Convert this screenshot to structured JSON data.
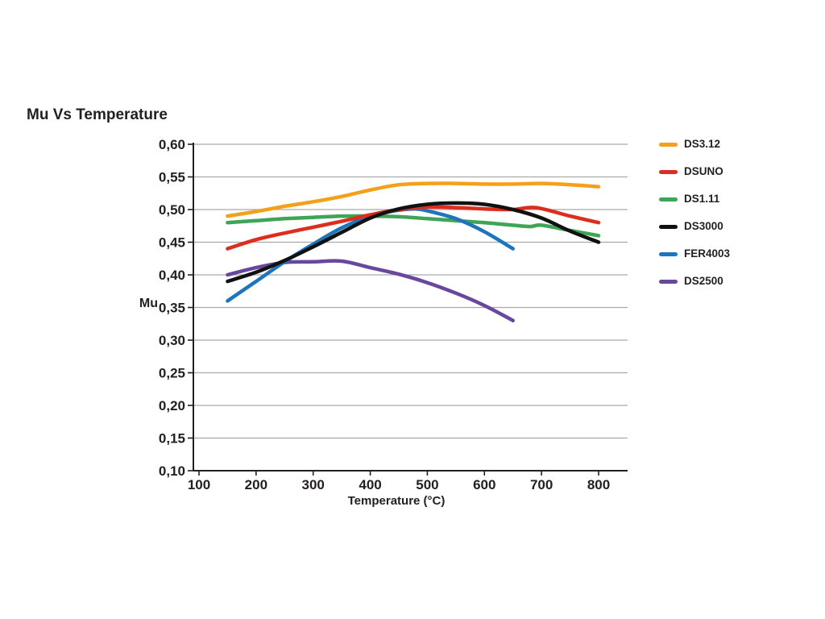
{
  "title": "Mu Vs Temperature",
  "chart_data": {
    "type": "line",
    "title": "Mu Vs Temperature",
    "xlabel": "Temperature (°C)",
    "ylabel": "Mu",
    "xlim": [
      100,
      800
    ],
    "ylim": [
      0.1,
      0.6
    ],
    "grid": "horizontal",
    "legend_position": "right",
    "background_color": "#ffffff",
    "gridline_color": "#A7A9AC",
    "axis_color": "#231F20",
    "text_color": "#231F20",
    "xticks": {
      "values": [
        100,
        200,
        300,
        400,
        500,
        600,
        700,
        800
      ],
      "labels": [
        "100",
        "200",
        "300",
        "400",
        "500",
        "600",
        "700",
        "800"
      ]
    },
    "yticks": {
      "values": [
        0.6,
        0.55,
        0.5,
        0.45,
        0.4,
        0.35,
        0.3,
        0.25,
        0.2,
        0.15,
        0.1
      ],
      "labels": [
        "0,60",
        "0,55",
        "0,50",
        "0,45",
        "0,40",
        "0,35",
        "0,30",
        "0,25",
        "0,20",
        "0,15",
        "0,10"
      ]
    },
    "series": [
      {
        "name": "DS3.12",
        "color": "#F5A01B",
        "x": [
          150,
          200,
          250,
          300,
          350,
          400,
          450,
          500,
          550,
          600,
          650,
          700,
          750,
          800
        ],
        "y": [
          0.49,
          0.497,
          0.505,
          0.512,
          0.52,
          0.53,
          0.538,
          0.54,
          0.54,
          0.539,
          0.539,
          0.54,
          0.538,
          0.535
        ]
      },
      {
        "name": "DSUNO",
        "color": "#DC2E1E",
        "x": [
          150,
          200,
          250,
          300,
          350,
          400,
          450,
          500,
          550,
          600,
          650,
          690,
          750,
          800
        ],
        "y": [
          0.44,
          0.454,
          0.464,
          0.473,
          0.482,
          0.492,
          0.5,
          0.504,
          0.503,
          0.501,
          0.5,
          0.503,
          0.49,
          0.48
        ]
      },
      {
        "name": "DS1.11",
        "color": "#3EA456",
        "x": [
          150,
          200,
          250,
          300,
          350,
          400,
          450,
          500,
          550,
          600,
          650,
          680,
          700,
          750,
          800
        ],
        "y": [
          0.48,
          0.483,
          0.486,
          0.488,
          0.49,
          0.49,
          0.489,
          0.486,
          0.483,
          0.48,
          0.476,
          0.474,
          0.476,
          0.468,
          0.46
        ]
      },
      {
        "name": "DS3000",
        "color": "#111111",
        "x": [
          150,
          200,
          250,
          300,
          350,
          400,
          450,
          500,
          550,
          600,
          650,
          700,
          750,
          800
        ],
        "y": [
          0.39,
          0.404,
          0.422,
          0.443,
          0.465,
          0.487,
          0.501,
          0.508,
          0.51,
          0.508,
          0.5,
          0.487,
          0.467,
          0.45
        ]
      },
      {
        "name": "FER4003",
        "color": "#1D76BC",
        "x": [
          150,
          200,
          250,
          300,
          350,
          400,
          450,
          480,
          500,
          550,
          600,
          650
        ],
        "y": [
          0.36,
          0.39,
          0.42,
          0.447,
          0.472,
          0.49,
          0.499,
          0.501,
          0.498,
          0.486,
          0.466,
          0.44
        ]
      },
      {
        "name": "DS2500",
        "color": "#68489D",
        "x": [
          150,
          200,
          250,
          300,
          350,
          400,
          450,
          500,
          550,
          600,
          650
        ],
        "y": [
          0.4,
          0.411,
          0.419,
          0.42,
          0.421,
          0.411,
          0.401,
          0.388,
          0.372,
          0.353,
          0.33
        ]
      }
    ]
  }
}
